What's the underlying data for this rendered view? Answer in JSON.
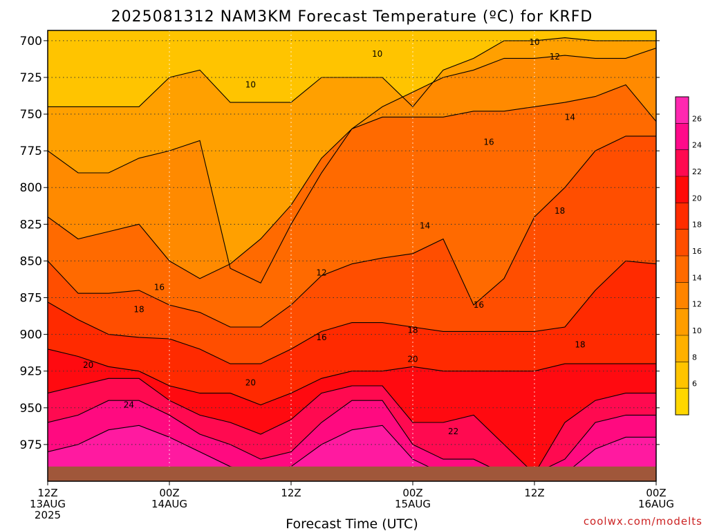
{
  "chart_data": {
    "type": "heatmap",
    "title": "2025081312 NAM3KM Forecast Temperature (ºC) for KRFD",
    "xlabel": "Forecast Time (UTC)",
    "ylabel": "",
    "credit": "coolwx.com/modelts",
    "y_axis": {
      "reversed": true,
      "ticks": [
        700,
        725,
        750,
        775,
        800,
        825,
        850,
        875,
        900,
        925,
        950,
        975
      ],
      "tick_labels": [
        "700",
        "725",
        "750",
        "775",
        "800",
        "825",
        "850",
        "875",
        "900",
        "925",
        "950",
        "975"
      ],
      "range": [
        693,
        1000
      ]
    },
    "x_axis": {
      "range_hours": [
        0,
        60
      ],
      "ticks": [
        {
          "hour": 0,
          "lines": [
            "12Z",
            "13AUG",
            "2025"
          ]
        },
        {
          "hour": 12,
          "lines": [
            "00Z",
            "14AUG"
          ]
        },
        {
          "hour": 24,
          "lines": [
            "12Z"
          ]
        },
        {
          "hour": 36,
          "lines": [
            "00Z",
            "15AUG"
          ]
        },
        {
          "hour": 48,
          "lines": [
            "12Z"
          ]
        },
        {
          "hour": 60,
          "lines": [
            "00Z",
            "16AUG"
          ]
        }
      ]
    },
    "grid": true,
    "surface_pressure_hpa": 990,
    "contour_interval_c": 2,
    "series": [
      {
        "name": "10",
        "values": [
          745,
          745,
          745,
          745,
          725,
          720,
          742,
          742,
          742,
          725,
          725,
          725,
          745,
          720,
          712,
          700,
          700,
          698,
          700,
          700,
          700
        ]
      },
      {
        "name": "12",
        "values": [
          775,
          790,
          790,
          780,
          775,
          768,
          855,
          865,
          825,
          790,
          760,
          745,
          735,
          725,
          720,
          712,
          712,
          710,
          712,
          712,
          705
        ]
      },
      {
        "name": "14",
        "values": [
          820,
          835,
          830,
          825,
          850,
          862,
          852,
          835,
          812,
          780,
          760,
          752,
          752,
          752,
          748,
          748,
          745,
          742,
          738,
          730,
          755
        ]
      },
      {
        "name": "16",
        "values": [
          850,
          872,
          872,
          870,
          880,
          885,
          895,
          895,
          880,
          860,
          852,
          848,
          845,
          835,
          880,
          862,
          820,
          800,
          775,
          765,
          765
        ]
      },
      {
        "name": "18",
        "values": [
          878,
          890,
          900,
          902,
          903,
          910,
          920,
          920,
          910,
          898,
          892,
          892,
          895,
          898,
          898,
          898,
          898,
          895,
          870,
          850,
          852
        ]
      },
      {
        "name": "20",
        "values": [
          910,
          915,
          922,
          925,
          935,
          940,
          940,
          948,
          940,
          930,
          925,
          925,
          922,
          925,
          925,
          925,
          925,
          920,
          920,
          920,
          920
        ]
      },
      {
        "name": "22",
        "values": [
          940,
          935,
          930,
          930,
          945,
          955,
          960,
          968,
          958,
          940,
          935,
          935,
          960,
          960,
          955,
          975,
          995,
          960,
          945,
          940,
          940
        ]
      },
      {
        "name": "24",
        "values": [
          960,
          955,
          945,
          945,
          955,
          968,
          975,
          985,
          980,
          960,
          945,
          945,
          975,
          985,
          985,
          995,
          995,
          985,
          960,
          955,
          955
        ]
      },
      {
        "name": "26",
        "values": [
          980,
          975,
          965,
          962,
          970,
          980,
          990,
          995,
          990,
          975,
          965,
          962,
          985,
          995,
          995,
          998,
          998,
          995,
          978,
          970,
          970
        ]
      }
    ],
    "contour_labels": [
      {
        "text": "10",
        "hour": 20,
        "p": 730
      },
      {
        "text": "10",
        "hour": 32.5,
        "p": 709
      },
      {
        "text": "10",
        "hour": 48,
        "p": 701
      },
      {
        "text": "12",
        "hour": 50,
        "p": 711
      },
      {
        "text": "14",
        "hour": 51.5,
        "p": 752
      },
      {
        "text": "16",
        "hour": 43.5,
        "p": 769
      },
      {
        "text": "14",
        "hour": 37.2,
        "p": 826
      },
      {
        "text": "18",
        "hour": 50.5,
        "p": 816
      },
      {
        "text": "12",
        "hour": 27,
        "p": 858
      },
      {
        "text": "16",
        "hour": 11,
        "p": 868
      },
      {
        "text": "18",
        "hour": 9,
        "p": 883
      },
      {
        "text": "16",
        "hour": 42.5,
        "p": 880
      },
      {
        "text": "16",
        "hour": 27,
        "p": 902
      },
      {
        "text": "18",
        "hour": 36,
        "p": 897
      },
      {
        "text": "18",
        "hour": 52.5,
        "p": 907
      },
      {
        "text": "20",
        "hour": 4,
        "p": 921
      },
      {
        "text": "20",
        "hour": 20,
        "p": 933
      },
      {
        "text": "20",
        "hour": 36,
        "p": 917
      },
      {
        "text": "24",
        "hour": 8,
        "p": 948
      },
      {
        "text": "22",
        "hour": 40,
        "p": 966
      }
    ],
    "colorbar": {
      "levels": [
        4,
        6,
        8,
        10,
        12,
        14,
        16,
        18,
        20,
        22,
        24,
        26,
        28
      ],
      "tick_labels": [
        "6",
        "8",
        "10",
        "12",
        "14",
        "16",
        "18",
        "20",
        "22",
        "24",
        "26"
      ],
      "colors": [
        "#ffd700",
        "#ffc400",
        "#ffb000",
        "#ff9d00",
        "#ff8400",
        "#ff6a00",
        "#ff4e00",
        "#ff2c00",
        "#ff0a08",
        "#ff0a50",
        "#ff0a8a",
        "#ff28b0"
      ]
    },
    "fill_colors": {
      "lt10": "#ffc400",
      "10-12": "#ffa000",
      "12-14": "#ff8a00",
      "14-16": "#ff6a00",
      "16-18": "#ff4e00",
      "18-20": "#ff2a00",
      "20-22": "#ff0a10",
      "22-24": "#ff0a50",
      "24-26": "#ff0a80",
      "gt26": "#ff1aa0"
    },
    "ground_color": "#a0573a"
  }
}
